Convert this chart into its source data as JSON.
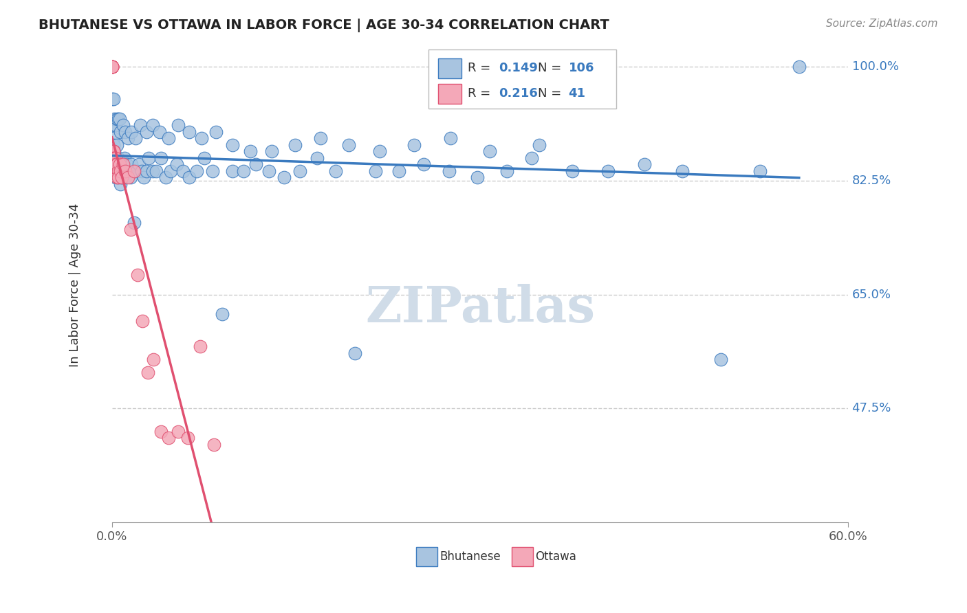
{
  "title": "BHUTANESE VS OTTAWA IN LABOR FORCE | AGE 30-34 CORRELATION CHART",
  "source_text": "Source: ZipAtlas.com",
  "ylabel": "In Labor Force | Age 30-34",
  "legend_labels": [
    "Bhutanese",
    "Ottawa"
  ],
  "r_blue": 0.149,
  "n_blue": 106,
  "r_pink": 0.216,
  "n_pink": 41,
  "xlim": [
    0.0,
    0.6
  ],
  "ylim": [
    0.3,
    1.03
  ],
  "right_yticks": [
    1.0,
    0.825,
    0.65,
    0.475
  ],
  "right_yticklabels": [
    "100.0%",
    "82.5%",
    "65.0%",
    "47.5%"
  ],
  "blue_color": "#a8c4e0",
  "pink_color": "#f4a8b8",
  "blue_line_color": "#3a7abf",
  "pink_line_color": "#e05070",
  "title_color": "#222222",
  "legend_r_color": "#3a7abf",
  "watermark_color": "#d0dce8",
  "grid_color": "#cccccc",
  "blue_x": [
    0.0,
    0.0,
    0.001,
    0.001,
    0.001,
    0.002,
    0.002,
    0.002,
    0.002,
    0.003,
    0.003,
    0.003,
    0.004,
    0.004,
    0.004,
    0.005,
    0.005,
    0.006,
    0.006,
    0.007,
    0.008,
    0.008,
    0.009,
    0.01,
    0.01,
    0.011,
    0.012,
    0.013,
    0.015,
    0.016,
    0.018,
    0.02,
    0.022,
    0.024,
    0.026,
    0.028,
    0.03,
    0.033,
    0.036,
    0.04,
    0.044,
    0.048,
    0.053,
    0.058,
    0.063,
    0.069,
    0.075,
    0.082,
    0.09,
    0.098,
    0.107,
    0.117,
    0.128,
    0.14,
    0.153,
    0.167,
    0.182,
    0.198,
    0.215,
    0.234,
    0.254,
    0.275,
    0.298,
    0.322,
    0.348,
    0.375,
    0.404,
    0.434,
    0.465,
    0.496,
    0.528,
    0.56,
    0.0,
    0.001,
    0.002,
    0.003,
    0.004,
    0.005,
    0.006,
    0.007,
    0.009,
    0.011,
    0.013,
    0.016,
    0.019,
    0.023,
    0.028,
    0.033,
    0.039,
    0.046,
    0.054,
    0.063,
    0.073,
    0.085,
    0.098,
    0.113,
    0.13,
    0.149,
    0.17,
    0.193,
    0.218,
    0.246,
    0.276,
    0.308,
    0.342,
    0.378,
    0.415,
    0.454
  ],
  "blue_y": [
    0.87,
    0.91,
    0.89,
    0.88,
    0.87,
    0.86,
    0.85,
    0.84,
    0.87,
    0.86,
    0.84,
    0.83,
    0.85,
    0.83,
    0.88,
    0.84,
    0.86,
    0.83,
    0.85,
    0.82,
    0.84,
    0.83,
    0.85,
    0.84,
    0.86,
    0.83,
    0.85,
    0.84,
    0.83,
    0.85,
    0.76,
    0.84,
    0.85,
    0.84,
    0.83,
    0.84,
    0.86,
    0.84,
    0.84,
    0.86,
    0.83,
    0.84,
    0.85,
    0.84,
    0.83,
    0.84,
    0.86,
    0.84,
    0.62,
    0.84,
    0.84,
    0.85,
    0.84,
    0.83,
    0.84,
    0.86,
    0.84,
    0.56,
    0.84,
    0.84,
    0.85,
    0.84,
    0.83,
    0.84,
    0.88,
    0.84,
    0.84,
    0.85,
    0.84,
    0.55,
    0.84,
    1.0,
    0.95,
    0.95,
    0.92,
    0.91,
    0.92,
    0.92,
    0.92,
    0.9,
    0.91,
    0.9,
    0.89,
    0.9,
    0.89,
    0.91,
    0.9,
    0.91,
    0.9,
    0.89,
    0.91,
    0.9,
    0.89,
    0.9,
    0.88,
    0.87,
    0.87,
    0.88,
    0.89,
    0.88,
    0.87,
    0.88,
    0.89,
    0.87,
    0.86,
    1.0
  ],
  "pink_x": [
    0.0,
    0.0,
    0.0,
    0.0,
    0.0,
    0.0,
    0.0,
    0.001,
    0.001,
    0.001,
    0.001,
    0.001,
    0.002,
    0.002,
    0.002,
    0.002,
    0.003,
    0.003,
    0.003,
    0.004,
    0.004,
    0.005,
    0.005,
    0.006,
    0.007,
    0.008,
    0.009,
    0.011,
    0.013,
    0.015,
    0.018,
    0.021,
    0.025,
    0.029,
    0.034,
    0.04,
    0.046,
    0.054,
    0.062,
    0.072,
    0.083
  ],
  "pink_y": [
    1.0,
    1.0,
    1.0,
    1.0,
    1.0,
    1.0,
    0.87,
    0.87,
    0.87,
    0.87,
    0.86,
    0.85,
    0.86,
    0.85,
    0.84,
    0.85,
    0.86,
    0.85,
    0.84,
    0.83,
    0.85,
    0.84,
    0.83,
    0.85,
    0.84,
    0.83,
    0.85,
    0.84,
    0.83,
    0.75,
    0.84,
    0.68,
    0.61,
    0.53,
    0.55,
    0.44,
    0.43,
    0.44,
    0.43,
    0.57,
    0.42
  ]
}
